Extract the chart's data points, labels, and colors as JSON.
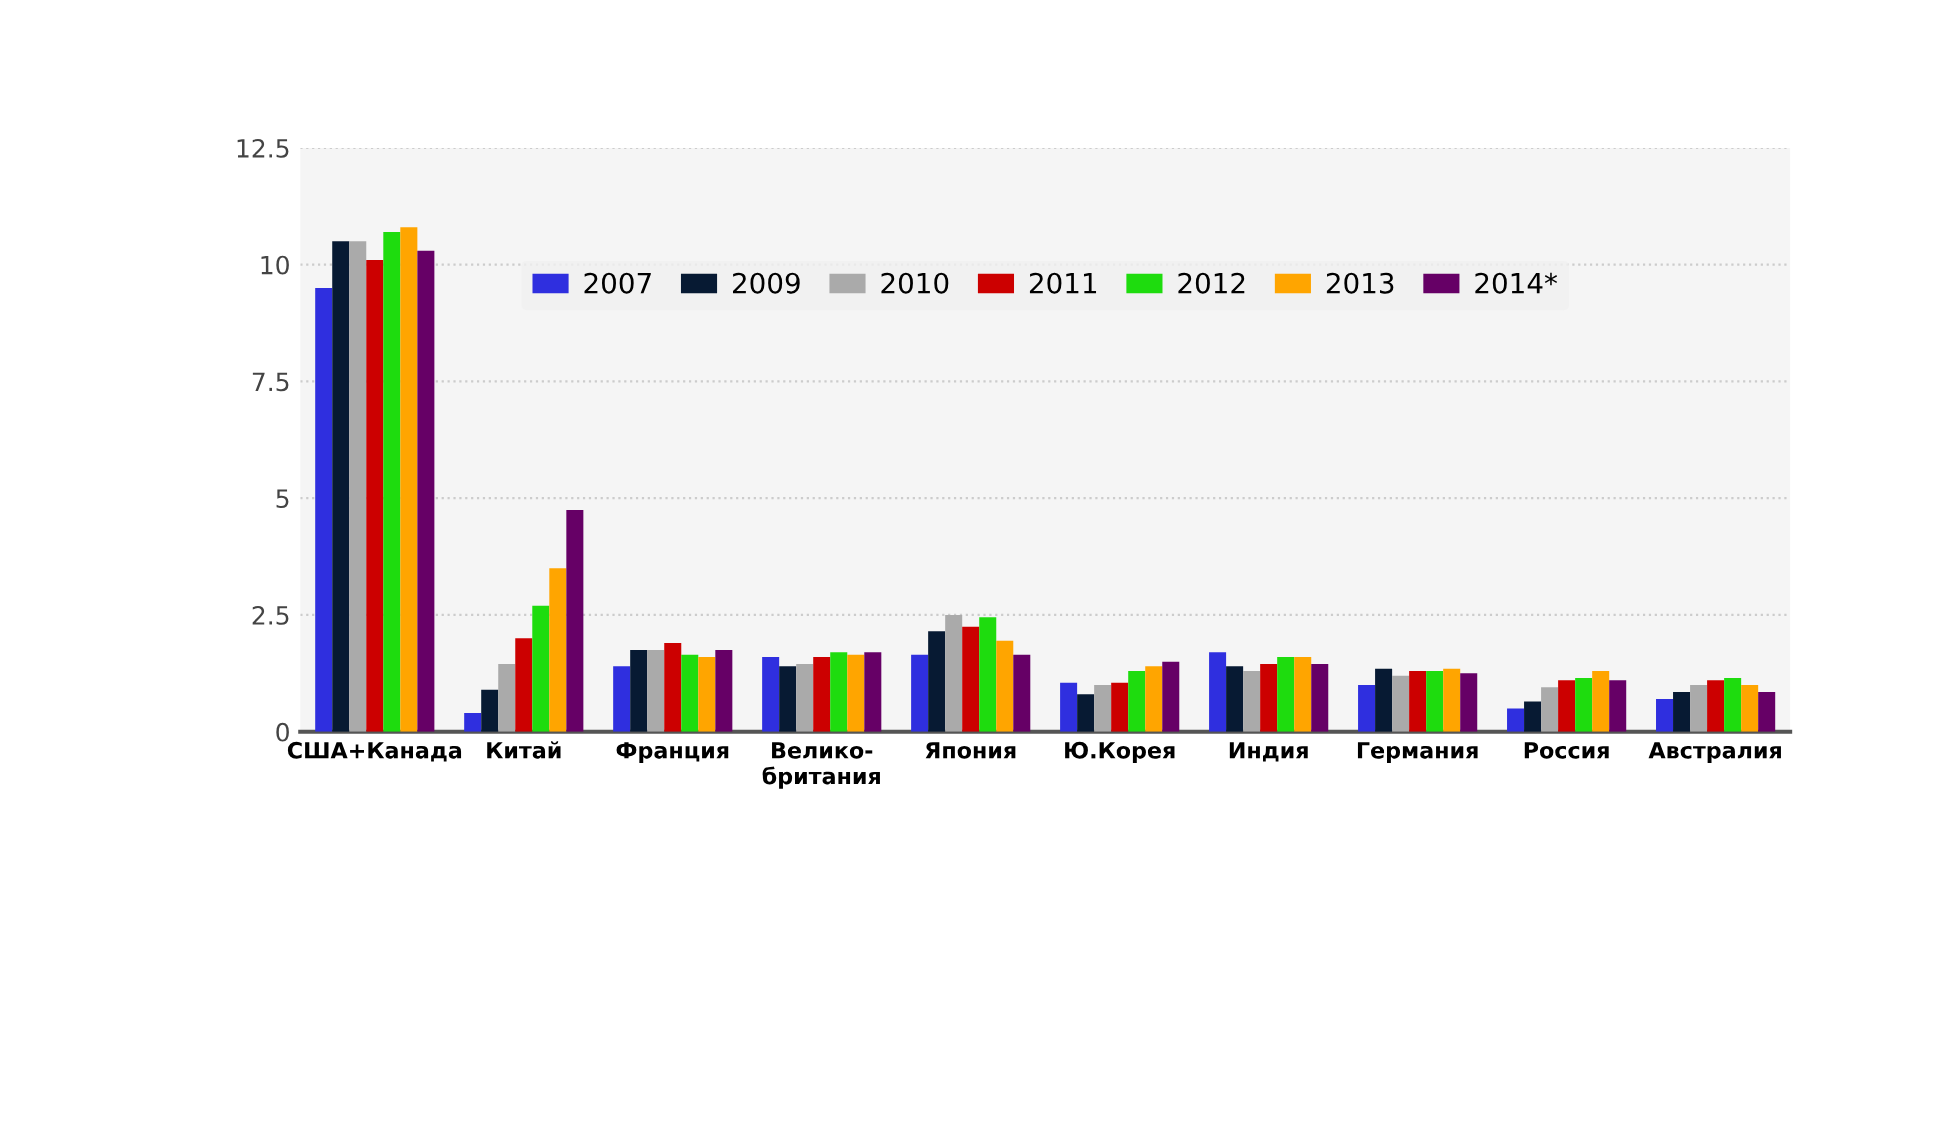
{
  "chart_data": {
    "type": "bar",
    "categories": [
      "США+Канада",
      "Китай",
      "Франция",
      "Велико-\nбритания",
      "Япония",
      "Ю.Корея",
      "Индия",
      "Германия",
      "Россия",
      "Австралия"
    ],
    "series": [
      {
        "name": "2007",
        "color": "#2f2fdf",
        "values": [
          9.5,
          0.4,
          1.4,
          1.6,
          1.65,
          1.05,
          1.7,
          1.0,
          0.5,
          0.7
        ]
      },
      {
        "name": "2009",
        "color": "#071a33",
        "values": [
          10.5,
          0.9,
          1.75,
          1.4,
          2.15,
          0.8,
          1.4,
          1.35,
          0.65,
          0.85
        ]
      },
      {
        "name": "2010",
        "color": "#aaaaaa",
        "values": [
          10.5,
          1.45,
          1.75,
          1.45,
          2.5,
          1.0,
          1.3,
          1.2,
          0.95,
          1.0
        ]
      },
      {
        "name": "2011",
        "color": "#cc0000",
        "values": [
          10.1,
          2.0,
          1.9,
          1.6,
          2.25,
          1.05,
          1.45,
          1.3,
          1.1,
          1.1
        ]
      },
      {
        "name": "2012",
        "color": "#1edc0e",
        "values": [
          10.7,
          2.7,
          1.65,
          1.7,
          2.45,
          1.3,
          1.6,
          1.3,
          1.15,
          1.15
        ]
      },
      {
        "name": "2013",
        "color": "#ffa500",
        "values": [
          10.8,
          3.5,
          1.6,
          1.65,
          1.95,
          1.4,
          1.6,
          1.35,
          1.3,
          1.0
        ]
      },
      {
        "name": "2014*",
        "color": "#660066",
        "values": [
          10.3,
          4.75,
          1.75,
          1.7,
          1.65,
          1.5,
          1.45,
          1.25,
          1.1,
          0.85
        ]
      }
    ],
    "ylim": [
      0,
      12.5
    ],
    "yticks": [
      0,
      2.5,
      5,
      7.5,
      10,
      12.5
    ],
    "grid": "y",
    "legend": "top"
  }
}
